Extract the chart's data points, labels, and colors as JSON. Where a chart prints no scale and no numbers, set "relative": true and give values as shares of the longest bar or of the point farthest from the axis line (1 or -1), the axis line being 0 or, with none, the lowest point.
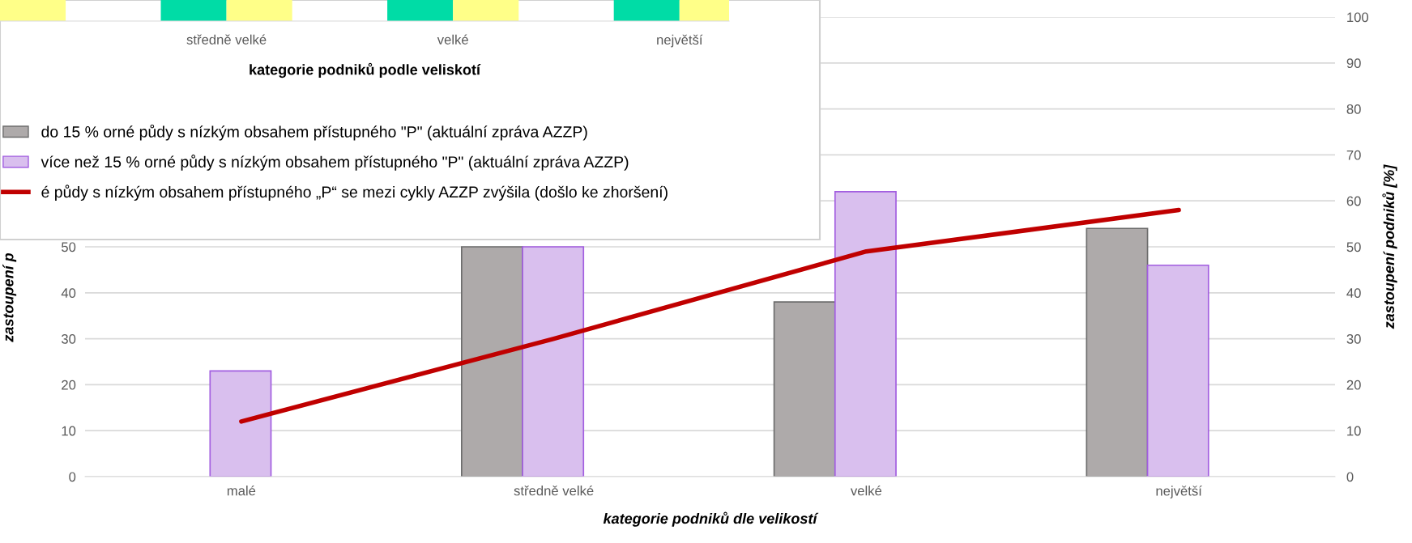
{
  "chart_data": [
    {
      "type": "bar",
      "relative": true,
      "categories": [
        null,
        "středně velké",
        "velké",
        "největší"
      ],
      "xlabel": "kategorie podniků podle veliskotí",
      "series": [
        {
          "color": "#00dca6",
          "values": [
            null,
            1,
            1,
            1
          ]
        },
        {
          "color": "#ffff88",
          "values": [
            1,
            1,
            1,
            1
          ]
        }
      ],
      "grid": false
    },
    {
      "type": "bar",
      "categories": [
        "malé",
        "středně velké",
        "velké",
        "největší"
      ],
      "xlabel": "kategorie podniků dle velikostí",
      "ylabel": "zastoupení p",
      "y2label": "zastoupení podniků [%]",
      "ylim": [
        0,
        100
      ],
      "yticks": [
        0,
        10,
        20,
        30,
        40,
        50
      ],
      "y2lim": [
        0,
        100
      ],
      "y2ticks": [
        0,
        10,
        20,
        30,
        40,
        50,
        60,
        70,
        80,
        90,
        100
      ],
      "series": [
        {
          "name": "do 15 % orné půdy s nízkým obsahem přístupného \"P\" (aktuální zpráva AZZP)",
          "color": "#aeaaaa",
          "values": [
            null,
            50,
            38,
            54
          ]
        },
        {
          "name": "více než 15 % orné půdy s nízkým obsahem přístupného \"P\" (aktuální zpráva AZZP)",
          "color": "#d9bfee",
          "values": [
            23,
            50,
            62,
            46
          ]
        },
        {
          "name": "é půdy s nízkým obsahem přístupného „P“ se mezi cykly AZZP zvýšila (došlo ke zhoršení)",
          "type": "line",
          "color": "#c00000",
          "values": [
            12,
            30,
            49,
            58
          ]
        }
      ],
      "grid": "y",
      "legend": "top left"
    }
  ]
}
